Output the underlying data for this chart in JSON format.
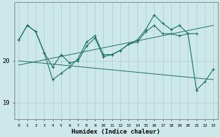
{
  "x": [
    0,
    1,
    2,
    3,
    4,
    5,
    6,
    7,
    8,
    9,
    10,
    11,
    12,
    13,
    14,
    15,
    16,
    17,
    18,
    19,
    20,
    21,
    22,
    23
  ],
  "line_jagged1": [
    20.5,
    20.85,
    20.7,
    20.2,
    19.85,
    20.15,
    19.95,
    20.0,
    20.35,
    20.55,
    20.1,
    20.15,
    20.25,
    20.4,
    20.45,
    20.7,
    20.85,
    20.65,
    20.65,
    20.6,
    20.65,
    20.65,
    null,
    null
  ],
  "line_jagged2": [
    20.5,
    20.85,
    20.7,
    20.2,
    19.55,
    19.7,
    19.85,
    20.05,
    20.45,
    20.6,
    20.15,
    20.15,
    20.25,
    20.4,
    20.5,
    20.75,
    21.1,
    20.9,
    20.75,
    20.85,
    20.65,
    19.3,
    19.5,
    19.8
  ],
  "line_trend1_x": [
    0,
    23
  ],
  "line_trend1_y": [
    19.9,
    20.85
  ],
  "line_trend2_x": [
    0,
    23
  ],
  "line_trend2_y": [
    20.0,
    19.55
  ],
  "bg_color": "#cce8e8",
  "line_color": "#1a7060",
  "grid_color": "#aacece",
  "ylim": [
    18.6,
    21.4
  ],
  "xlim": [
    -0.5,
    23.5
  ],
  "yticks": [
    19,
    20
  ],
  "xlabel": "Humidex (Indice chaleur)",
  "figsize": [
    3.2,
    2.0
  ],
  "dpi": 100
}
